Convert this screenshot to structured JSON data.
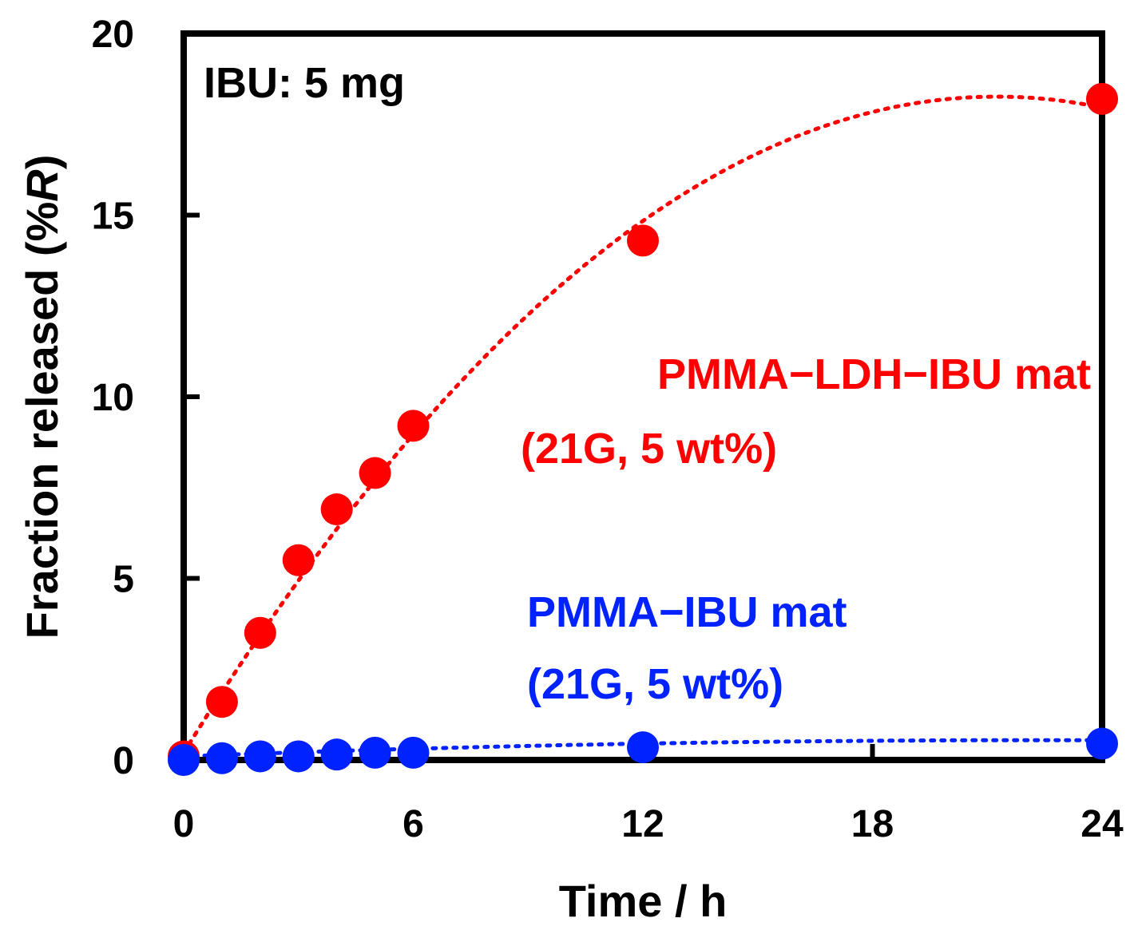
{
  "chart_data": {
    "type": "scatter",
    "title": "",
    "annotation": "IBU: 5 mg",
    "xlabel": "Time / h",
    "ylabel_text": "Fraction released (%",
    "ylabel_italic": "R",
    "ylabel_close": ")",
    "xlim": [
      0,
      24
    ],
    "ylim": [
      0,
      20
    ],
    "xticks": [
      0,
      6,
      12,
      18,
      24
    ],
    "yticks": [
      0,
      5,
      10,
      15,
      20
    ],
    "grid": false,
    "series": [
      {
        "name_line1": "PMMA−LDH−IBU mat",
        "name_line2": "(21G, 5 wt%)",
        "color": "#ff0000",
        "x": [
          0,
          1,
          2,
          3,
          4,
          5,
          6,
          12,
          24
        ],
        "y": [
          0.1,
          1.6,
          3.5,
          5.5,
          6.9,
          7.9,
          9.2,
          14.3,
          18.2
        ],
        "fit_coefficients": [
          0.2,
          1.7,
          -0.04
        ]
      },
      {
        "name_line1": "PMMA−IBU mat",
        "name_line2": "(21G, 5 wt%)",
        "color": "#0022ff",
        "x": [
          0,
          1,
          2,
          3,
          4,
          5,
          6,
          12,
          24
        ],
        "y": [
          0.0,
          0.05,
          0.1,
          0.1,
          0.15,
          0.2,
          0.2,
          0.35,
          0.45
        ],
        "fit_coefficients": [
          0.1,
          0.04,
          -0.0009
        ]
      }
    ]
  }
}
